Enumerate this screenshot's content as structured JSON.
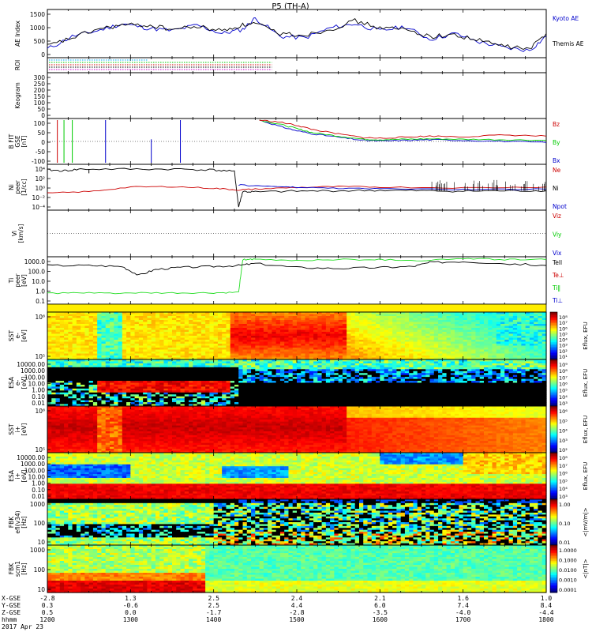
{
  "title": "P5 (TH-A)",
  "date_label": "2017 Apr 23",
  "colors": {
    "kyoto": "#0000cc",
    "themis": "#000000",
    "red": "#cc0000",
    "green": "#00cc00",
    "blue": "#0000cc",
    "black": "#000000",
    "green_bright": "#22dd22"
  },
  "chart_data": {
    "type": "line",
    "x_axis": {
      "time_label": "hhmm",
      "time_ticks": [
        "1200",
        "1300",
        "1400",
        "1500",
        "1600",
        "1700",
        "1800"
      ],
      "x_gse_label": "X-GSE",
      "y_gse_label": "Y-GSE",
      "z_gse_label": "Z-GSE",
      "x_gse": [
        "-2.8",
        "1.3",
        "2.5",
        "2.4",
        "2.1",
        "1.6",
        "1.0"
      ],
      "y_gse": [
        "0.3",
        "-0.6",
        "2.5",
        "4.4",
        "6.0",
        "7.4",
        "8.4"
      ],
      "z_gse": [
        "0.5",
        "0.0",
        "-1.7",
        "-2.8",
        "-3.5",
        "-4.0",
        "-4.4"
      ]
    },
    "panels": [
      {
        "id": "ae",
        "ylabel": "AE Index",
        "yticks": [
          "1500",
          "1000",
          "500",
          "0"
        ],
        "ylim": [
          0,
          1600
        ],
        "series": [
          {
            "name": "Kyoto AE",
            "color": "#0000cc",
            "x": [
              12.0,
              12.3,
              12.6,
              12.9,
              13.2,
              13.5,
              13.8,
              14.1,
              14.35,
              14.5,
              14.8,
              15.1,
              15.4,
              15.7,
              16.0,
              16.3,
              16.6,
              16.9,
              17.2,
              17.5,
              17.8,
              18.0
            ],
            "y": [
              250,
              700,
              900,
              1150,
              1000,
              900,
              1100,
              800,
              950,
              1350,
              700,
              650,
              1000,
              1150,
              900,
              1050,
              600,
              800,
              500,
              300,
              200,
              700
            ]
          },
          {
            "name": "Themis AE",
            "color": "#000000",
            "x": [
              12.0,
              12.3,
              12.6,
              12.9,
              13.2,
              13.5,
              13.8,
              14.1,
              14.35,
              14.5,
              14.8,
              15.1,
              15.4,
              15.7,
              16.0,
              16.3,
              16.6,
              16.9,
              17.2,
              17.5,
              17.8,
              18.0
            ],
            "y": [
              350,
              650,
              950,
              1100,
              1100,
              950,
              1050,
              900,
              1100,
              1150,
              800,
              750,
              950,
              1250,
              1000,
              950,
              700,
              750,
              550,
              350,
              250,
              800
            ]
          }
        ]
      },
      {
        "id": "roi",
        "ylabel": "ROI",
        "yticks": []
      },
      {
        "id": "keogram",
        "ylabel": "Keogram",
        "yticks": [
          "300",
          "250",
          "200",
          "150",
          "100",
          "50",
          "0"
        ]
      },
      {
        "id": "bfit",
        "ylabel": "B FIT\nGSE\n[nT]",
        "yticks": [
          "100",
          "50",
          "0",
          "-50",
          "-100"
        ],
        "ylim": [
          -100,
          100
        ],
        "series": [
          {
            "name": "Bz",
            "color": "#cc0000",
            "x": [
              14.55,
              14.8,
              15.0,
              15.2,
              15.5,
              15.8,
              16.0,
              16.3,
              16.6,
              17.0,
              17.5,
              18.0
            ],
            "y": [
              100,
              90,
              75,
              55,
              35,
              18,
              15,
              20,
              25,
              22,
              30,
              25
            ]
          },
          {
            "name": "By",
            "color": "#00cc00",
            "x": [
              14.55,
              14.8,
              15.0,
              15.2,
              15.5,
              15.8,
              16.0,
              16.3,
              16.6,
              17.0,
              17.5,
              18.0
            ],
            "y": [
              100,
              80,
              60,
              40,
              25,
              10,
              8,
              10,
              12,
              10,
              8,
              5
            ]
          },
          {
            "name": "Bx",
            "color": "#0000cc",
            "x": [
              14.55,
              14.8,
              15.0,
              15.2,
              15.5,
              15.8,
              16.0,
              16.3,
              16.6,
              17.0,
              17.5,
              18.0
            ],
            "y": [
              100,
              70,
              50,
              35,
              20,
              5,
              2,
              5,
              8,
              5,
              0,
              -5
            ]
          }
        ]
      },
      {
        "id": "ni",
        "ylabel": "Ni\npeer\n[1/cc]",
        "yticks": [
          "10^4",
          "10^2",
          "10^0",
          "10^-2",
          "10^-4"
        ],
        "series": [
          {
            "name": "Ne",
            "color": "#cc0000"
          },
          {
            "name": "Ni",
            "color": "#000000"
          },
          {
            "name": "Npot",
            "color": "#0000cc"
          }
        ]
      },
      {
        "id": "vi",
        "ylabel": "Vi\n[km/s]",
        "yticks": [],
        "series": [
          {
            "name": "Viz",
            "color": "#cc0000"
          },
          {
            "name": "Viy",
            "color": "#00cc00"
          },
          {
            "name": "Vix",
            "color": "#0000cc"
          }
        ]
      },
      {
        "id": "ti",
        "ylabel": "Ti\npeer\n[eV]",
        "yticks": [
          "1000.0",
          "100.0",
          "10.0",
          "1.0",
          "0.1"
        ],
        "series": [
          {
            "name": "Tell",
            "color": "#000000"
          },
          {
            "name": "Te⊥",
            "color": "#cc0000"
          },
          {
            "name": "Ti‖",
            "color": "#00cc00"
          },
          {
            "name": "Ti⊥",
            "color": "#0000cc"
          }
        ]
      },
      {
        "id": "sst_e",
        "ylabel": "SST\ne-\n[eV]",
        "yticks": [
          "10^6",
          "10^5"
        ],
        "colorbar_ticks": [
          "10^8",
          "10^7",
          "10^6",
          "10^5",
          "10^4",
          "10^3",
          "10^2",
          "10^1"
        ],
        "colorbar_label": "Eflux, EFU"
      },
      {
        "id": "esa_e",
        "ylabel": "ESA\ne-\n[eV]",
        "yticks": [
          "10000.00",
          "1000.00",
          "100.00",
          "10.00",
          "1.00",
          "0.10",
          "0.01"
        ],
        "colorbar_ticks": [
          "10^9",
          "10^8",
          "10^7",
          "10^6",
          "10^5",
          "10^4",
          "10^3"
        ],
        "colorbar_label": "Eflux, EFU"
      },
      {
        "id": "sst_i",
        "ylabel": "SST\ni+\n[eV]",
        "yticks": [
          "10^6",
          "10^5"
        ],
        "colorbar_ticks": [
          "10^6",
          "10^5",
          "10^4",
          "10^3",
          "10^2"
        ],
        "colorbar_label": "Eflux, EFU"
      },
      {
        "id": "esa_i",
        "ylabel": "ESA\ni+\n[eV]",
        "yticks": [
          "10000.00",
          "1000.00",
          "100.00",
          "10.00",
          "1.00",
          "0.10",
          "0.01"
        ],
        "colorbar_ticks": [
          "10^8",
          "10^7",
          "10^6",
          "10^5",
          "10^4",
          "10^3"
        ],
        "colorbar_label": "Eflux, EFU"
      },
      {
        "id": "fbk_e",
        "ylabel": "FBK\nefi(v34)\n[Hz]",
        "yticks": [
          "1000",
          "100",
          "10"
        ],
        "colorbar_ticks": [
          "1.00",
          "0.10",
          "0.01"
        ],
        "colorbar_label": "<|mV/m|>"
      },
      {
        "id": "fbk_b",
        "ylabel": "FBK\nscm1\n[Hz]",
        "yticks": [
          "1000",
          "100",
          "10"
        ],
        "colorbar_ticks": [
          "1.0000",
          "0.1000",
          "0.0100",
          "0.0010",
          "0.0001"
        ],
        "colorbar_label": "<|nT|>"
      }
    ]
  }
}
